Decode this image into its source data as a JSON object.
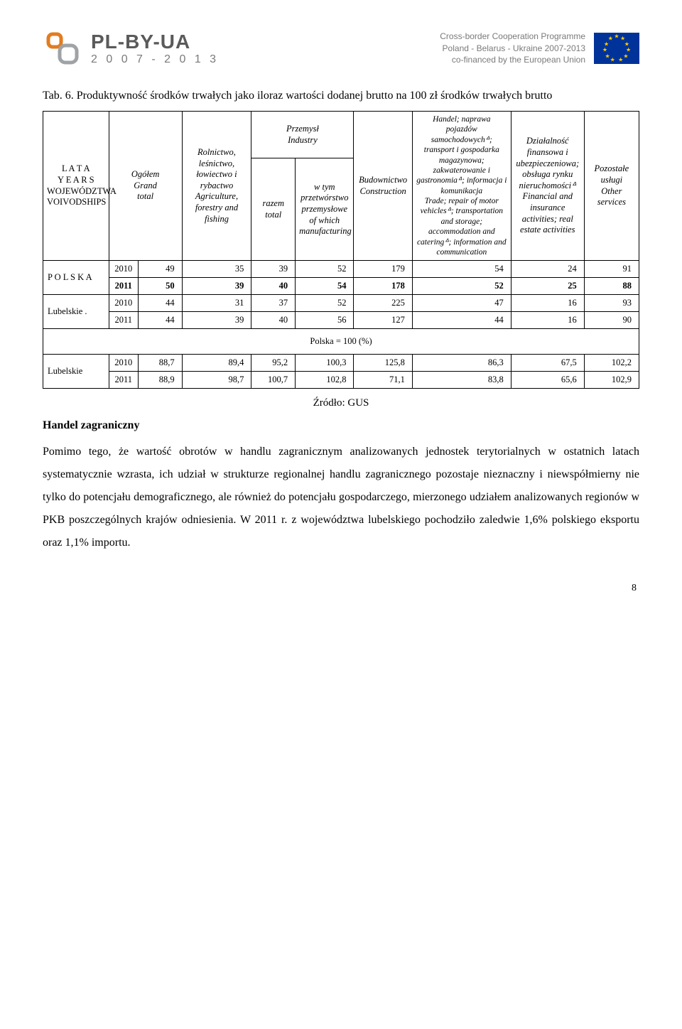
{
  "header": {
    "plbyua": "PL-BY-UA",
    "years": "2 0 0 7 - 2 0 1 3",
    "program_line1": "Cross-border Cooperation Programme",
    "program_line2": "Poland - Belarus - Ukraine 2007-2013",
    "program_line3": "co-financed by the European Union"
  },
  "table": {
    "caption": "Tab. 6. Produktywność środków trwałych jako iloraz wartości dodanej brutto na 100 zł środków trwałych brutto",
    "col_lata": "L A T A\nY E A R S\nWOJEWÓDZTWA\nVOIVODSHIPS",
    "col_ogolem": "Ogółem\nGrand\ntotal",
    "col_rolnictwo": "Rolnictwo, leśnictwo, łowiectwo i rybactwo\nAgriculture, forestry and fishing",
    "col_przemysl": "Przemysł\nIndustry",
    "col_razem": "razem\ntotal",
    "col_wtym": "w tym przetwórstwo przemysłowe\nof which manufacturing",
    "col_budownictwo": "Budownictwo\nConstruction",
    "col_handel": "Handel; naprawa pojazdów samochodowychᐞ; transport i gospodarka magazynowa; zakwaterowanie i gastronomiaᐞ; informacja i komunikacja\nTrade; repair of motor vehiclesᐞ; transportation and storage; accommodation and cateringᐞ; information and communication",
    "col_finanse": "Działalność finansowa i ubezpieczeniowa; obsługa rynku nieruchomościᐞ\nFinancial and insurance activities; real estate activities",
    "col_pozostale": "Pozostałe usługi\nOther services",
    "row_label_polska": "P O L S K A",
    "row_label_lubelskie_dot": "Lubelskie .",
    "mid_row": "Polska = 100 (%)",
    "row_label_lubelskie": "Lubelskie",
    "rows_top": [
      {
        "year": "2010",
        "vals": [
          "49",
          "35",
          "39",
          "52",
          "179",
          "54",
          "24",
          "91"
        ]
      },
      {
        "year": "2011",
        "vals": [
          "50",
          "39",
          "40",
          "54",
          "178",
          "52",
          "25",
          "88"
        ],
        "bold": true
      }
    ],
    "rows_mid": [
      {
        "year": "2010",
        "vals": [
          "44",
          "31",
          "37",
          "52",
          "225",
          "47",
          "16",
          "93"
        ]
      },
      {
        "year": "2011",
        "vals": [
          "44",
          "39",
          "40",
          "56",
          "127",
          "44",
          "16",
          "90"
        ]
      }
    ],
    "rows_bot": [
      {
        "year": "2010",
        "vals": [
          "88,7",
          "89,4",
          "95,2",
          "100,3",
          "125,8",
          "86,3",
          "67,5",
          "102,2"
        ]
      },
      {
        "year": "2011",
        "vals": [
          "88,9",
          "98,7",
          "100,7",
          "102,8",
          "71,1",
          "83,8",
          "65,6",
          "102,9"
        ]
      }
    ],
    "source": "Źródło: GUS"
  },
  "section": {
    "heading": "Handel zagraniczny",
    "paragraph": "Pomimo tego, że wartość obrotów w handlu zagranicznym analizowanych jednostek terytorialnych w ostatnich latach systematycznie wzrasta, ich udział w strukturze regionalnej handlu zagranicznego pozostaje nieznaczny i niewspółmierny nie tylko do potencjału demograficznego, ale również do potencjału gospodarczego, mierzonego udziałem analizowanych regionów w PKB poszczególnych krajów odniesienia. W 2011 r. z województwa lubelskiego pochodziło zaledwie 1,6% polskiego eksportu oraz 1,1% importu."
  },
  "page_number": "8"
}
